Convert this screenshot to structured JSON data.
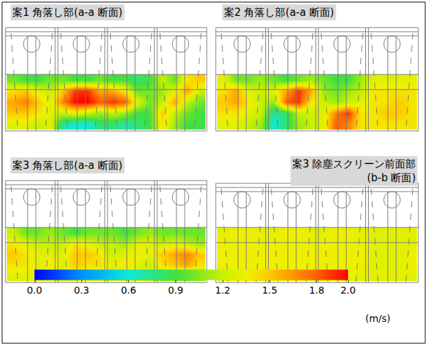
{
  "chart_data": [
    {
      "type": "heatmap",
      "title": "案1 角落し部(a-a 断面)",
      "tick_labels": false,
      "z": [
        [
          1.0,
          0.9,
          0.9,
          1.0,
          1.0,
          0.9,
          0.9,
          1.0,
          0.9,
          0.9,
          0.8,
          0.9,
          1.2,
          1.0,
          1.4,
          1.5
        ],
        [
          1.4,
          1.5,
          1.3,
          1.2,
          1.5,
          1.9,
          1.9,
          1.6,
          1.6,
          1.4,
          1.0,
          1.0,
          1.1,
          1.3,
          1.6,
          1.2
        ],
        [
          1.6,
          1.7,
          1.5,
          1.3,
          1.7,
          2.0,
          2.0,
          1.8,
          1.9,
          1.8,
          1.3,
          1.0,
          1.2,
          1.6,
          1.2,
          1.0
        ],
        [
          1.5,
          1.5,
          1.4,
          1.3,
          1.2,
          1.3,
          1.2,
          1.1,
          1.2,
          1.1,
          0.9,
          0.9,
          1.5,
          1.2,
          1.0,
          0.9
        ],
        [
          1.3,
          1.3,
          1.2,
          1.3,
          0.7,
          0.6,
          0.6,
          0.8,
          0.8,
          0.7,
          0.8,
          0.9,
          1.4,
          1.1,
          0.9,
          0.9
        ]
      ]
    },
    {
      "type": "heatmap",
      "title": "案2 角落し部(a-a 断面)",
      "tick_labels": false,
      "z": [
        [
          1.3,
          1.0,
          1.0,
          1.1,
          1.0,
          0.9,
          1.0,
          1.1,
          1.0,
          0.9,
          0.9,
          1.1,
          1.3,
          1.3,
          1.3,
          1.3
        ],
        [
          1.4,
          1.6,
          1.3,
          1.2,
          1.3,
          1.6,
          1.9,
          1.6,
          1.1,
          1.0,
          1.1,
          1.2,
          1.4,
          1.4,
          1.4,
          1.4
        ],
        [
          1.5,
          1.6,
          1.4,
          1.2,
          1.1,
          1.8,
          1.9,
          1.4,
          1.2,
          1.1,
          1.2,
          1.3,
          1.4,
          1.4,
          1.5,
          1.4
        ],
        [
          1.4,
          1.4,
          1.3,
          1.2,
          0.7,
          0.8,
          1.2,
          1.2,
          1.3,
          1.7,
          1.9,
          1.4,
          1.4,
          1.5,
          1.5,
          1.4
        ],
        [
          1.3,
          1.3,
          1.2,
          1.1,
          0.6,
          0.8,
          1.1,
          1.2,
          1.3,
          1.8,
          1.7,
          1.4,
          1.4,
          1.4,
          1.4,
          1.4
        ]
      ]
    },
    {
      "type": "heatmap",
      "title": "案3 角落し部(a-a 断面)",
      "tick_labels": false,
      "z": [
        [
          1.2,
          1.0,
          1.0,
          1.1,
          1.0,
          0.9,
          1.0,
          1.0,
          1.0,
          0.9,
          1.0,
          1.1,
          1.0,
          1.0,
          1.0,
          1.0
        ],
        [
          1.4,
          1.3,
          1.2,
          1.2,
          1.2,
          1.4,
          1.3,
          1.2,
          1.2,
          1.1,
          1.3,
          1.3,
          1.2,
          1.3,
          1.2,
          1.1
        ],
        [
          1.5,
          1.4,
          1.3,
          1.3,
          1.3,
          1.5,
          1.5,
          1.4,
          1.2,
          1.3,
          1.4,
          1.3,
          1.5,
          1.6,
          1.7,
          1.5
        ],
        [
          1.4,
          1.4,
          1.3,
          1.4,
          1.3,
          1.5,
          1.4,
          1.4,
          1.3,
          1.4,
          1.3,
          1.2,
          1.4,
          1.5,
          1.6,
          1.4
        ],
        [
          1.3,
          1.3,
          1.3,
          1.3,
          1.2,
          1.3,
          1.3,
          1.3,
          1.2,
          1.3,
          1.2,
          1.2,
          1.0,
          1.1,
          1.0,
          1.1
        ]
      ]
    },
    {
      "type": "heatmap",
      "title": "案3 除塵スクリーン前面部\n(b-b 断面)",
      "tick_labels": false,
      "z": [
        [
          1.3,
          1.35,
          1.35,
          1.3,
          1.3,
          1.35,
          1.35,
          1.3,
          1.3,
          1.35,
          1.35,
          1.3,
          1.3,
          1.3,
          1.3,
          1.3
        ],
        [
          1.35,
          1.35,
          1.35,
          1.35,
          1.35,
          1.35,
          1.35,
          1.35,
          1.35,
          1.35,
          1.35,
          1.35,
          1.3,
          1.3,
          1.3,
          1.3
        ],
        [
          1.35,
          1.35,
          1.35,
          1.35,
          1.35,
          1.35,
          1.35,
          1.35,
          1.35,
          1.35,
          1.35,
          1.35,
          1.3,
          1.3,
          1.3,
          1.35
        ],
        [
          1.35,
          1.35,
          1.35,
          1.35,
          1.35,
          1.35,
          1.35,
          1.35,
          1.35,
          1.35,
          1.35,
          1.35,
          1.3,
          1.3,
          1.3,
          1.35
        ],
        [
          1.3,
          1.35,
          1.35,
          1.3,
          1.3,
          1.35,
          1.35,
          1.3,
          1.3,
          1.35,
          1.35,
          1.3,
          1.3,
          1.3,
          1.3,
          1.3
        ]
      ]
    }
  ],
  "colorbar": {
    "zlim": [
      0,
      2
    ],
    "zticks": [
      {
        "value": 0,
        "label": "0.0"
      },
      0.3,
      0.6,
      0.9,
      1.2,
      1.5,
      1.8,
      {
        "value": 2,
        "label": "2.0"
      }
    ],
    "unit": "(m/s)"
  }
}
